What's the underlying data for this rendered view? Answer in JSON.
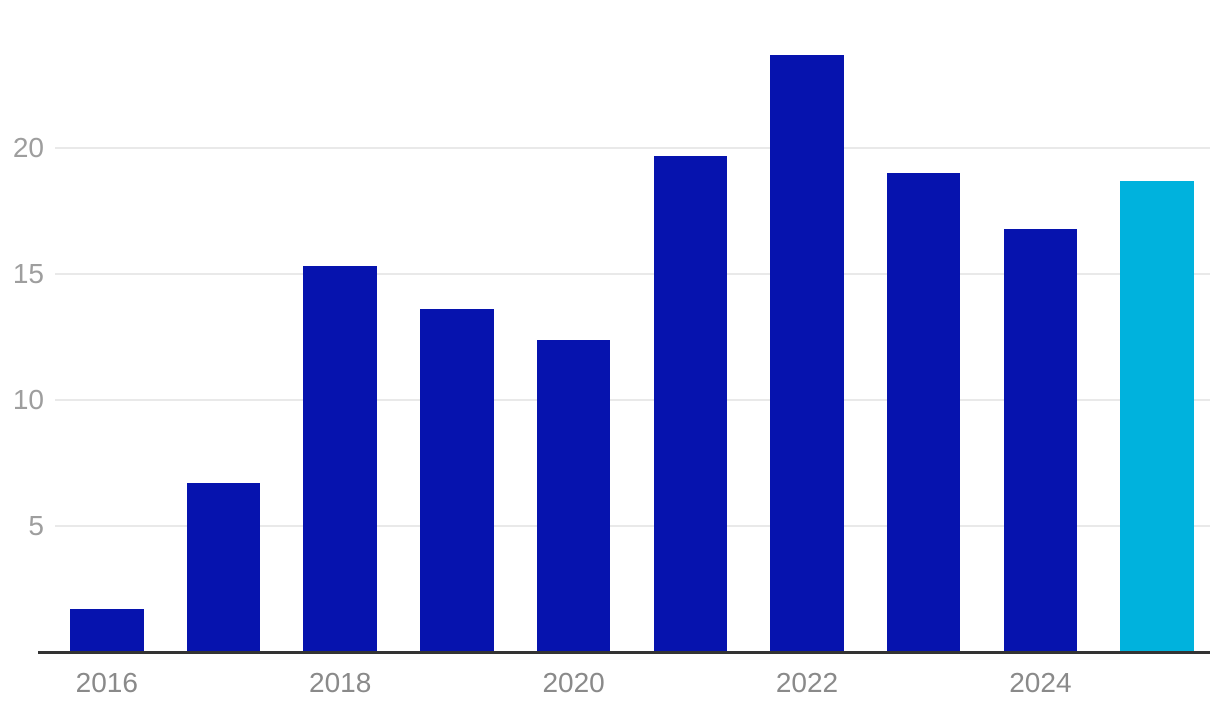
{
  "chart_data": {
    "type": "bar",
    "title": "",
    "xlabel": "",
    "ylabel": "",
    "categories": [
      "2016",
      "2017",
      "2018",
      "2019",
      "2020",
      "2021",
      "2022",
      "2023",
      "2024",
      "2025"
    ],
    "values": [
      1.7,
      6.7,
      15.3,
      13.6,
      12.4,
      19.7,
      23.7,
      19.0,
      16.8,
      18.7
    ],
    "highlight_index": 9,
    "ylim": [
      0,
      25
    ],
    "yticks": [
      5,
      10,
      15,
      20
    ],
    "xtick_labels": [
      "2016",
      "2018",
      "2020",
      "2022",
      "2024"
    ],
    "grid": true,
    "legend": "none",
    "colors": {
      "bar": "#0613AE",
      "highlight_bar": "#00B2DD",
      "gridline": "#E9E9E9",
      "axis_line": "#333333",
      "y_tick_label": "#9E9E9E",
      "x_tick_label": "#8A8A8A"
    }
  }
}
